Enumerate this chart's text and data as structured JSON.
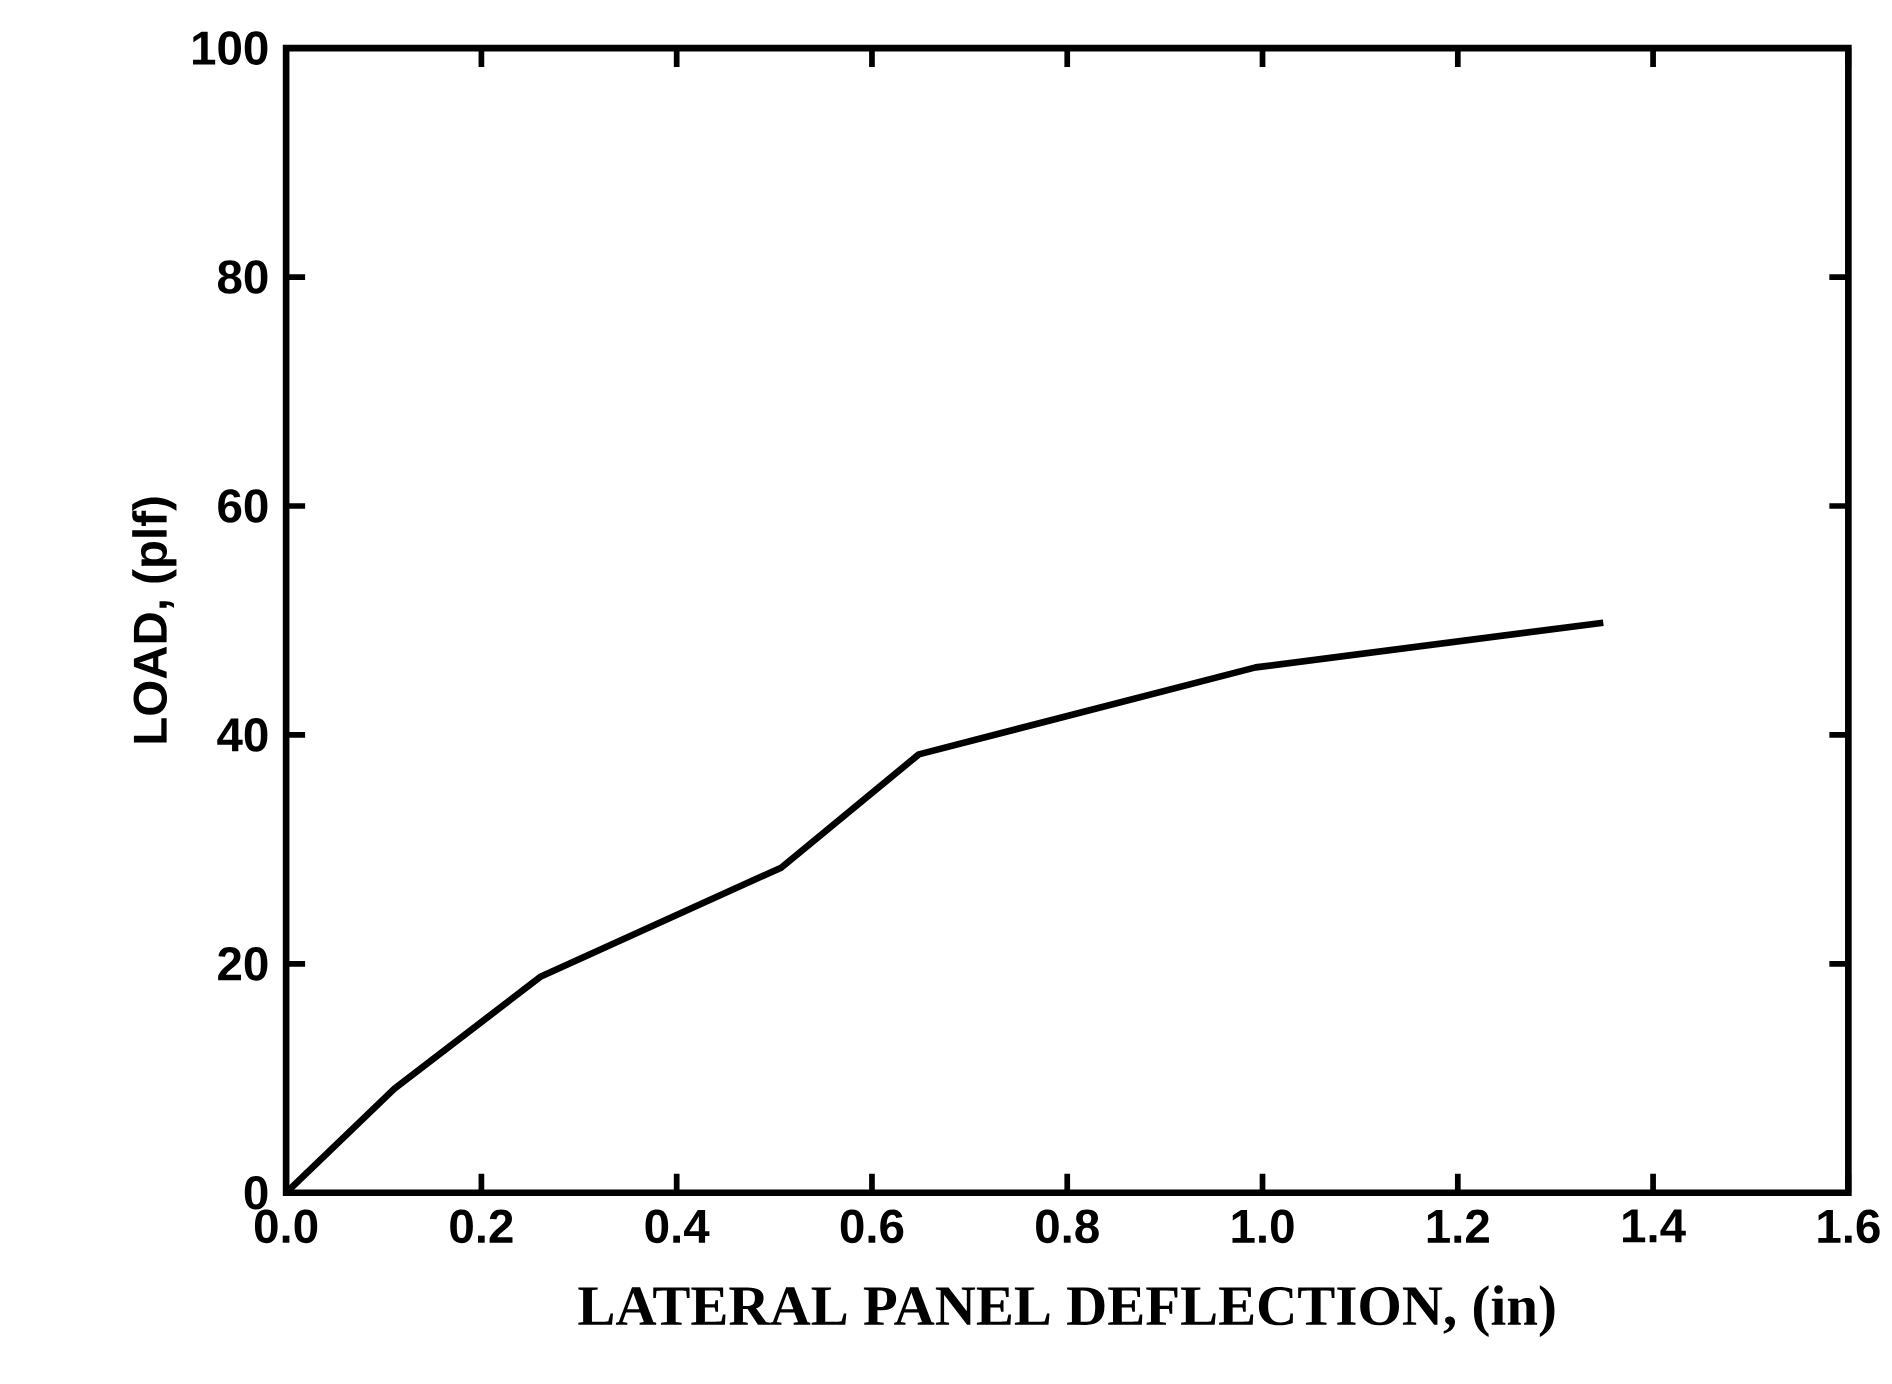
{
  "chart_data": {
    "type": "line",
    "xlabel": "LATERAL PANEL DEFLECTION, (in)",
    "ylabel": "LOAD, (plf)",
    "x": [
      0,
      0.111,
      0.261,
      0.507,
      0.648,
      0.993,
      1.349
    ],
    "values": [
      0,
      9.1,
      18.9,
      28.4,
      38.3,
      45.9,
      49.8
    ],
    "color": "#000000",
    "xlim": [
      0,
      1.6
    ],
    "ylim": [
      0,
      100
    ],
    "xticks": [
      {
        "value": 0,
        "label": "0.0"
      },
      {
        "value": 0.2,
        "label": "0.2"
      },
      {
        "value": 0.4,
        "label": "0.4"
      },
      {
        "value": 0.6,
        "label": "0.6"
      },
      {
        "value": 0.8,
        "label": "0.8"
      },
      {
        "value": 1.0,
        "label": "1.0"
      },
      {
        "value": 1.2,
        "label": "1.2"
      },
      {
        "value": 1.4,
        "label": "1.4"
      },
      {
        "value": 1.6,
        "label": "1.6"
      }
    ],
    "yticks": [
      0,
      20,
      40,
      60,
      80,
      100
    ],
    "grid": false,
    "marker": "none",
    "line_style": "solid"
  }
}
